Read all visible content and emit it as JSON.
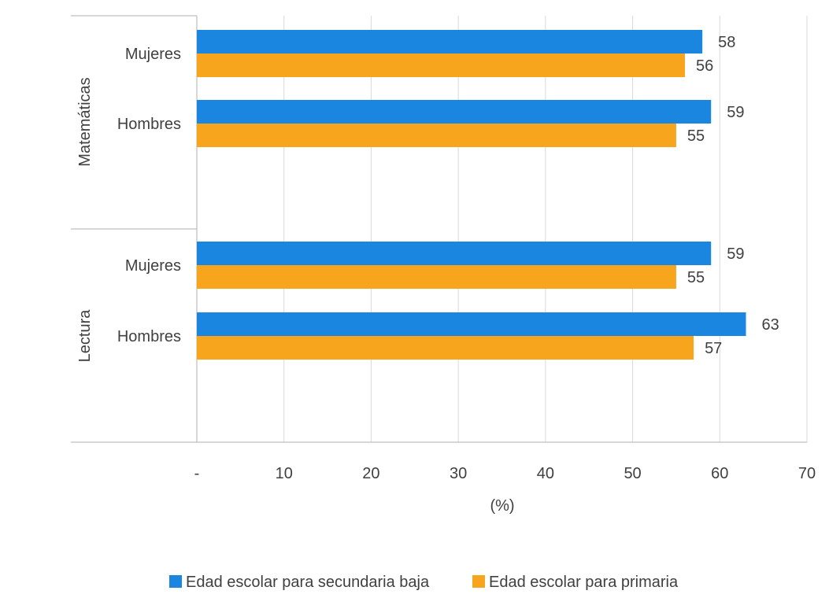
{
  "chart_data": {
    "type": "bar",
    "orientation": "horizontal",
    "groups": [
      {
        "name": "Matemáticas",
        "categories": [
          "Mujeres",
          "Hombres"
        ]
      },
      {
        "name": "Lectura",
        "categories": [
          "Mujeres",
          "Hombres"
        ]
      }
    ],
    "series": [
      {
        "name": "Edad escolar para secundaria baja",
        "color": "#1a86e0",
        "values": [
          [
            58,
            59
          ],
          [
            59,
            63
          ]
        ]
      },
      {
        "name": "Edad escolar para primaria",
        "color": "#f8a51e",
        "values": [
          [
            56,
            55
          ],
          [
            55,
            57
          ]
        ]
      }
    ],
    "xlabel": "(%)",
    "xlim": [
      0,
      70
    ],
    "xticks": [
      "-",
      "10",
      "20",
      "30",
      "40",
      "50",
      "60",
      "70"
    ],
    "grid": true,
    "legend": "bottom"
  }
}
